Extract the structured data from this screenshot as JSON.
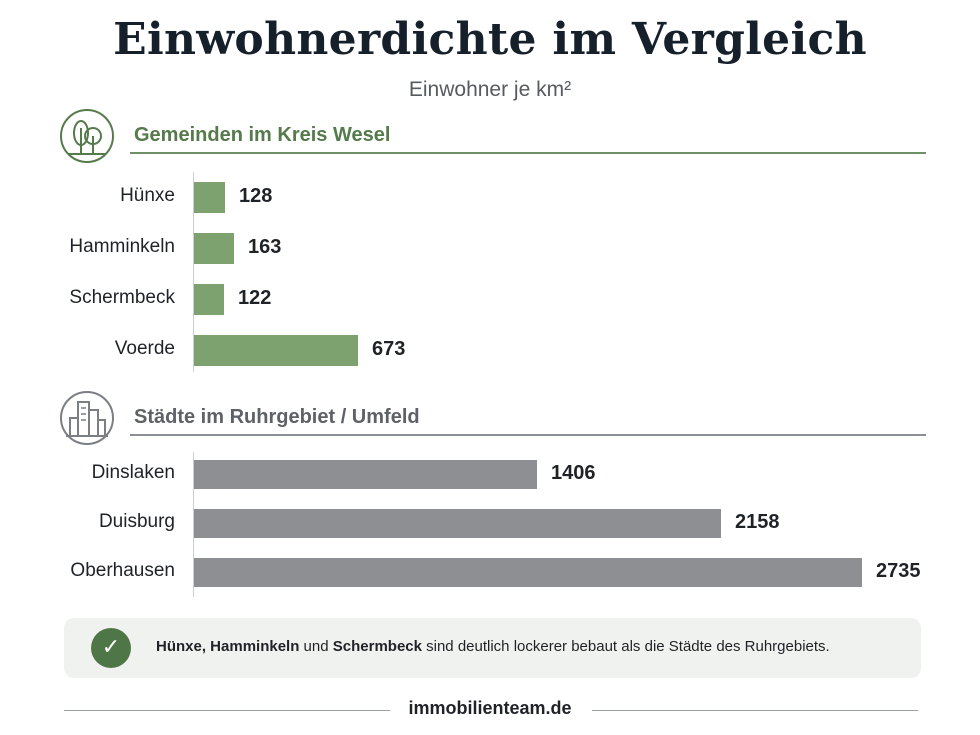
{
  "chart_data": [
    {
      "type": "bar",
      "orientation": "horizontal",
      "title": "Einwohnerdichte im Vergleich",
      "subtitle": "Einwohner je km²",
      "group_title": "Gemeinden im Kreis Wesel",
      "categories": [
        "Hünxe",
        "Hamminkeln",
        "Schermbeck",
        "Voerde"
      ],
      "values": [
        128,
        163,
        122,
        673
      ],
      "color": "#7da26f",
      "xlim": [
        0,
        2735
      ]
    },
    {
      "type": "bar",
      "orientation": "horizontal",
      "group_title": "Städte im Ruhrgebiet / Umfeld",
      "categories": [
        "Dinslaken",
        "Duisburg",
        "Oberhausen"
      ],
      "values": [
        1406,
        2158,
        2735
      ],
      "color": "#8e8f93",
      "xlim": [
        0,
        2735
      ]
    }
  ],
  "header": {
    "title": "Einwohnerdichte im Vergleich",
    "subtitle": "Einwohner je km²"
  },
  "note": {
    "part1": "Hünxe, Hamminkeln",
    "part2": " und ",
    "part3": "Schermbeck",
    "part4": " sind deutlich lockerer bebaut als die Städte des Ruhrgebiets."
  },
  "footer": {
    "brand": "immobilienteam.de"
  },
  "icons": {
    "section1": "trees-icon",
    "section2": "city-buildings-icon",
    "note": "check-icon"
  },
  "colors": {
    "green_accent": "#557a4b",
    "green_bar": "#7da26f",
    "gray_bar": "#8e8f93"
  }
}
